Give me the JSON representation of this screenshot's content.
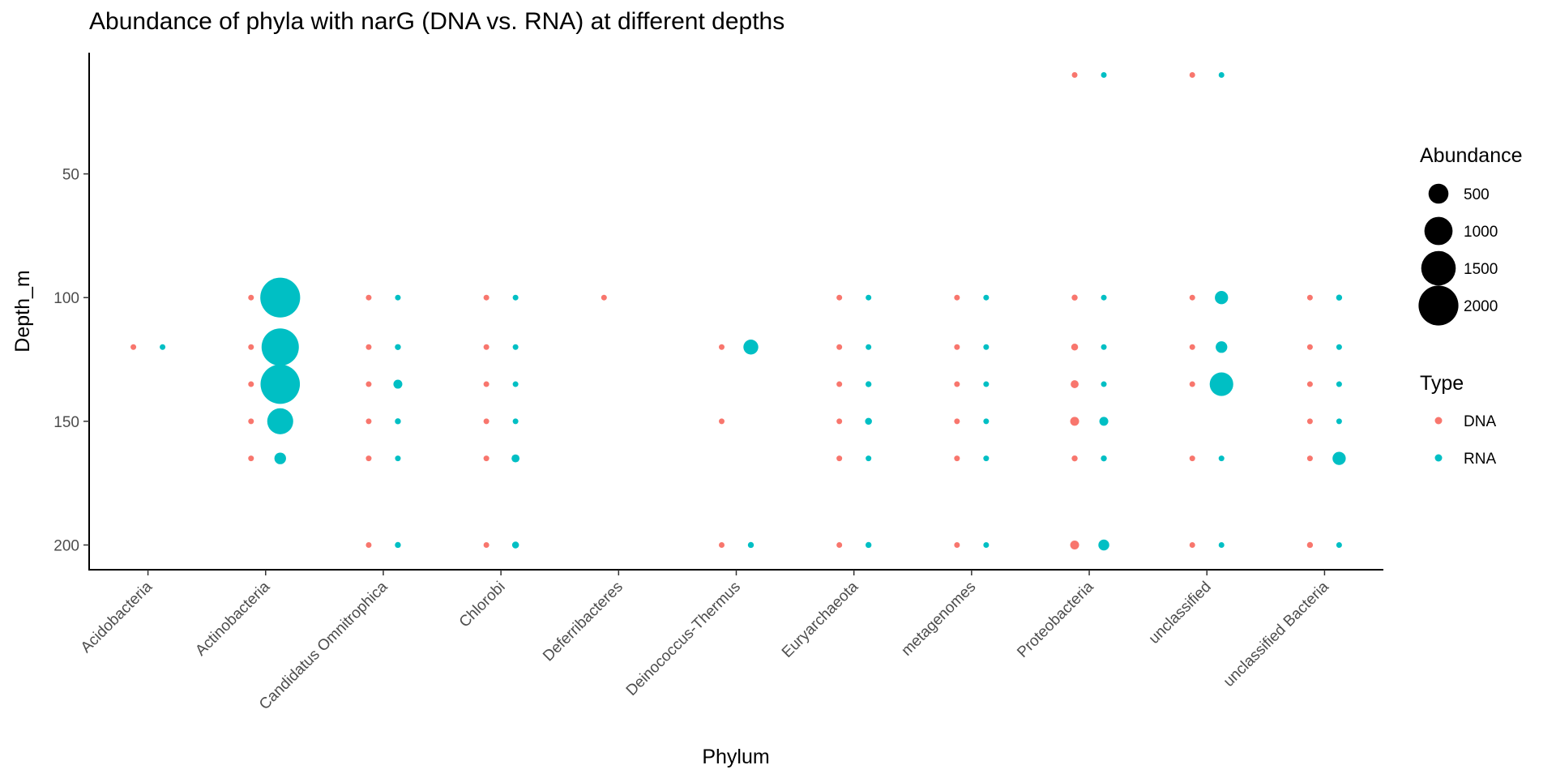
{
  "chart_data": {
    "type": "scatter",
    "title": "Abundance of phyla with narG (DNA vs. RNA) at different depths",
    "xlabel": "Phylum",
    "ylabel": "Depth_m",
    "categories": [
      "Acidobacteria",
      "Actinobacteria",
      "Candidatus Omnitrophica",
      "Chlorobi",
      "Deferribacteres",
      "Deinococcus-Thermus",
      "Euryarchaeota",
      "metagenomes",
      "Proteobacteria",
      "unclassified",
      "unclassified Bacteria"
    ],
    "ylim": [
      210,
      1
    ],
    "y_reversed": true,
    "yticks": [
      50,
      100,
      150,
      200
    ],
    "grid": false,
    "size_legend": {
      "title": "Abundance",
      "entries": [
        500,
        1000,
        1500,
        2000
      ]
    },
    "color_legend": {
      "title": "Type",
      "entries": [
        {
          "name": "DNA",
          "color": "#F8766D"
        },
        {
          "name": "RNA",
          "color": "#00BFC4"
        }
      ]
    },
    "series": [
      {
        "name": "DNA",
        "color": "#F8766D",
        "points": [
          {
            "phylum": "Acidobacteria",
            "depth": 120,
            "abundance": 8
          },
          {
            "phylum": "Actinobacteria",
            "depth": 100,
            "abundance": 30
          },
          {
            "phylum": "Actinobacteria",
            "depth": 120,
            "abundance": 18
          },
          {
            "phylum": "Actinobacteria",
            "depth": 135,
            "abundance": 30
          },
          {
            "phylum": "Actinobacteria",
            "depth": 150,
            "abundance": 18
          },
          {
            "phylum": "Actinobacteria",
            "depth": 165,
            "abundance": 18
          },
          {
            "phylum": "Candidatus Omnitrophica",
            "depth": 100,
            "abundance": 18
          },
          {
            "phylum": "Candidatus Omnitrophica",
            "depth": 120,
            "abundance": 18
          },
          {
            "phylum": "Candidatus Omnitrophica",
            "depth": 135,
            "abundance": 18
          },
          {
            "phylum": "Candidatus Omnitrophica",
            "depth": 150,
            "abundance": 18
          },
          {
            "phylum": "Candidatus Omnitrophica",
            "depth": 165,
            "abundance": 18
          },
          {
            "phylum": "Candidatus Omnitrophica",
            "depth": 200,
            "abundance": 18
          },
          {
            "phylum": "Chlorobi",
            "depth": 100,
            "abundance": 12
          },
          {
            "phylum": "Chlorobi",
            "depth": 120,
            "abundance": 18
          },
          {
            "phylum": "Chlorobi",
            "depth": 135,
            "abundance": 12
          },
          {
            "phylum": "Chlorobi",
            "depth": 150,
            "abundance": 18
          },
          {
            "phylum": "Chlorobi",
            "depth": 165,
            "abundance": 12
          },
          {
            "phylum": "Chlorobi",
            "depth": 200,
            "abundance": 30
          },
          {
            "phylum": "Deferribacteres",
            "depth": 100,
            "abundance": 8
          },
          {
            "phylum": "Deinococcus-Thermus",
            "depth": 120,
            "abundance": 18
          },
          {
            "phylum": "Deinococcus-Thermus",
            "depth": 150,
            "abundance": 8
          },
          {
            "phylum": "Deinococcus-Thermus",
            "depth": 200,
            "abundance": 12
          },
          {
            "phylum": "Euryarchaeota",
            "depth": 100,
            "abundance": 18
          },
          {
            "phylum": "Euryarchaeota",
            "depth": 120,
            "abundance": 18
          },
          {
            "phylum": "Euryarchaeota",
            "depth": 135,
            "abundance": 12
          },
          {
            "phylum": "Euryarchaeota",
            "depth": 150,
            "abundance": 12
          },
          {
            "phylum": "Euryarchaeota",
            "depth": 165,
            "abundance": 18
          },
          {
            "phylum": "Euryarchaeota",
            "depth": 200,
            "abundance": 12
          },
          {
            "phylum": "metagenomes",
            "depth": 100,
            "abundance": 8
          },
          {
            "phylum": "metagenomes",
            "depth": 120,
            "abundance": 12
          },
          {
            "phylum": "metagenomes",
            "depth": 135,
            "abundance": 18
          },
          {
            "phylum": "metagenomes",
            "depth": 150,
            "abundance": 18
          },
          {
            "phylum": "metagenomes",
            "depth": 165,
            "abundance": 12
          },
          {
            "phylum": "metagenomes",
            "depth": 200,
            "abundance": 30
          },
          {
            "phylum": "Proteobacteria",
            "depth": 10,
            "abundance": 18
          },
          {
            "phylum": "Proteobacteria",
            "depth": 100,
            "abundance": 45
          },
          {
            "phylum": "Proteobacteria",
            "depth": 120,
            "abundance": 60
          },
          {
            "phylum": "Proteobacteria",
            "depth": 135,
            "abundance": 80
          },
          {
            "phylum": "Proteobacteria",
            "depth": 150,
            "abundance": 100
          },
          {
            "phylum": "Proteobacteria",
            "depth": 165,
            "abundance": 45
          },
          {
            "phylum": "Proteobacteria",
            "depth": 200,
            "abundance": 100
          },
          {
            "phylum": "unclassified",
            "depth": 10,
            "abundance": 18
          },
          {
            "phylum": "unclassified",
            "depth": 100,
            "abundance": 30
          },
          {
            "phylum": "unclassified",
            "depth": 120,
            "abundance": 18
          },
          {
            "phylum": "unclassified",
            "depth": 135,
            "abundance": 30
          },
          {
            "phylum": "unclassified",
            "depth": 165,
            "abundance": 8
          },
          {
            "phylum": "unclassified",
            "depth": 200,
            "abundance": 8
          },
          {
            "phylum": "unclassified Bacteria",
            "depth": 100,
            "abundance": 18
          },
          {
            "phylum": "unclassified Bacteria",
            "depth": 120,
            "abundance": 30
          },
          {
            "phylum": "unclassified Bacteria",
            "depth": 135,
            "abundance": 30
          },
          {
            "phylum": "unclassified Bacteria",
            "depth": 150,
            "abundance": 18
          },
          {
            "phylum": "unclassified Bacteria",
            "depth": 165,
            "abundance": 18
          },
          {
            "phylum": "unclassified Bacteria",
            "depth": 200,
            "abundance": 45
          }
        ]
      },
      {
        "name": "RNA",
        "color": "#00BFC4",
        "points": [
          {
            "phylum": "Acidobacteria",
            "depth": 120,
            "abundance": 8
          },
          {
            "phylum": "Actinobacteria",
            "depth": 100,
            "abundance": 2000
          },
          {
            "phylum": "Actinobacteria",
            "depth": 120,
            "abundance": 1750
          },
          {
            "phylum": "Actinobacteria",
            "depth": 135,
            "abundance": 1950
          },
          {
            "phylum": "Actinobacteria",
            "depth": 150,
            "abundance": 850
          },
          {
            "phylum": "Actinobacteria",
            "depth": 165,
            "abundance": 170
          },
          {
            "phylum": "Candidatus Omnitrophica",
            "depth": 100,
            "abundance": 12
          },
          {
            "phylum": "Candidatus Omnitrophica",
            "depth": 120,
            "abundance": 45
          },
          {
            "phylum": "Candidatus Omnitrophica",
            "depth": 135,
            "abundance": 100
          },
          {
            "phylum": "Candidatus Omnitrophica",
            "depth": 150,
            "abundance": 45
          },
          {
            "phylum": "Candidatus Omnitrophica",
            "depth": 165,
            "abundance": 18
          },
          {
            "phylum": "Candidatus Omnitrophica",
            "depth": 200,
            "abundance": 45
          },
          {
            "phylum": "Chlorobi",
            "depth": 100,
            "abundance": 18
          },
          {
            "phylum": "Chlorobi",
            "depth": 120,
            "abundance": 8
          },
          {
            "phylum": "Chlorobi",
            "depth": 135,
            "abundance": 8
          },
          {
            "phylum": "Chlorobi",
            "depth": 150,
            "abundance": 12
          },
          {
            "phylum": "Chlorobi",
            "depth": 165,
            "abundance": 80
          },
          {
            "phylum": "Chlorobi",
            "depth": 200,
            "abundance": 60
          },
          {
            "phylum": "Deinococcus-Thermus",
            "depth": 120,
            "abundance": 280
          },
          {
            "phylum": "Deinococcus-Thermus",
            "depth": 200,
            "abundance": 45
          },
          {
            "phylum": "Euryarchaeota",
            "depth": 100,
            "abundance": 12
          },
          {
            "phylum": "Euryarchaeota",
            "depth": 120,
            "abundance": 30
          },
          {
            "phylum": "Euryarchaeota",
            "depth": 135,
            "abundance": 45
          },
          {
            "phylum": "Euryarchaeota",
            "depth": 150,
            "abundance": 60
          },
          {
            "phylum": "Euryarchaeota",
            "depth": 165,
            "abundance": 12
          },
          {
            "phylum": "Euryarchaeota",
            "depth": 200,
            "abundance": 45
          },
          {
            "phylum": "metagenomes",
            "depth": 100,
            "abundance": 12
          },
          {
            "phylum": "metagenomes",
            "depth": 120,
            "abundance": 12
          },
          {
            "phylum": "metagenomes",
            "depth": 135,
            "abundance": 12
          },
          {
            "phylum": "metagenomes",
            "depth": 150,
            "abundance": 30
          },
          {
            "phylum": "metagenomes",
            "depth": 165,
            "abundance": 12
          },
          {
            "phylum": "metagenomes",
            "depth": 200,
            "abundance": 12
          },
          {
            "phylum": "Proteobacteria",
            "depth": 10,
            "abundance": 12
          },
          {
            "phylum": "Proteobacteria",
            "depth": 100,
            "abundance": 18
          },
          {
            "phylum": "Proteobacteria",
            "depth": 120,
            "abundance": 18
          },
          {
            "phylum": "Proteobacteria",
            "depth": 135,
            "abundance": 18
          },
          {
            "phylum": "Proteobacteria",
            "depth": 150,
            "abundance": 100
          },
          {
            "phylum": "Proteobacteria",
            "depth": 165,
            "abundance": 45
          },
          {
            "phylum": "Proteobacteria",
            "depth": 200,
            "abundance": 150
          },
          {
            "phylum": "unclassified",
            "depth": 10,
            "abundance": 18
          },
          {
            "phylum": "unclassified",
            "depth": 100,
            "abundance": 220
          },
          {
            "phylum": "unclassified",
            "depth": 120,
            "abundance": 170
          },
          {
            "phylum": "unclassified",
            "depth": 135,
            "abundance": 700
          },
          {
            "phylum": "unclassified",
            "depth": 165,
            "abundance": 8
          },
          {
            "phylum": "unclassified",
            "depth": 200,
            "abundance": 8
          },
          {
            "phylum": "unclassified Bacteria",
            "depth": 100,
            "abundance": 45
          },
          {
            "phylum": "unclassified Bacteria",
            "depth": 120,
            "abundance": 30
          },
          {
            "phylum": "unclassified Bacteria",
            "depth": 135,
            "abundance": 30
          },
          {
            "phylum": "unclassified Bacteria",
            "depth": 150,
            "abundance": 18
          },
          {
            "phylum": "unclassified Bacteria",
            "depth": 165,
            "abundance": 220
          },
          {
            "phylum": "unclassified Bacteria",
            "depth": 200,
            "abundance": 12
          }
        ]
      }
    ]
  }
}
